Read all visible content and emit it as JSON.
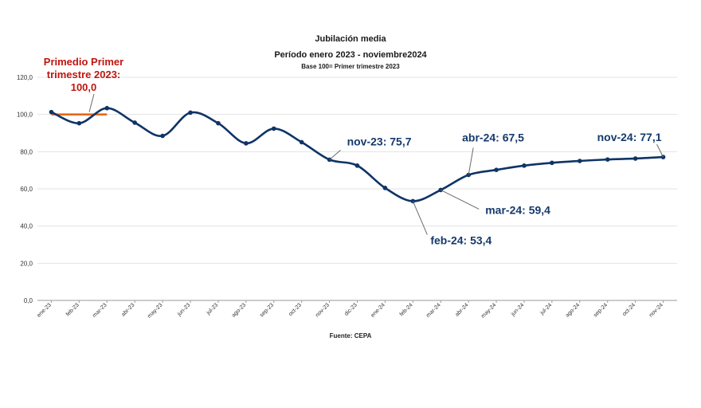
{
  "chart_data": {
    "type": "line",
    "title": "Jubilación media",
    "subtitle": "Período enero 2023 - noviembre2024",
    "note": "Base 100=  Primer trimestre 2023",
    "source": "Fuente: CEPA",
    "categories": [
      "ene-23",
      "feb-23",
      "mar-23",
      "abr-23",
      "may-23",
      "jun-23",
      "jul-23",
      "ago-23",
      "sep-23",
      "oct-23",
      "nov-23",
      "dic-23",
      "ene-24",
      "feb-24",
      "mar-24",
      "abr-24",
      "may-24",
      "jun-24",
      "jul-24",
      "ago-24",
      "sep-24",
      "oct-24",
      "nov-24"
    ],
    "series": [
      {
        "values": [
          101.3,
          95.3,
          103.4,
          95.6,
          88.5,
          101.0,
          95.3,
          84.5,
          92.4,
          85.1,
          75.7,
          72.5,
          60.5,
          53.4,
          59.4,
          67.5,
          70.2,
          72.5,
          74.0,
          75.0,
          75.8,
          76.3,
          77.1
        ]
      }
    ],
    "ylim": [
      0,
      120
    ],
    "yticks": [
      "0,0",
      "20,0",
      "40,0",
      "60,0",
      "80,0",
      "100,0",
      "120,0"
    ],
    "ytick_values": [
      0,
      20,
      40,
      60,
      80,
      100,
      120
    ],
    "grid": true,
    "line_color": "#0f3466",
    "reference": {
      "label_lines": [
        "Primedio Primer",
        "trimestre 2023:",
        "100,0"
      ],
      "value": 100.0,
      "from": "ene-23",
      "to": "mar-23",
      "color": "#e3620f"
    },
    "annotations": [
      {
        "text": "nov-23: 75,7",
        "category": "nov-23"
      },
      {
        "text": "feb-24: 53,4",
        "category": "feb-24"
      },
      {
        "text": "mar-24: 59,4",
        "category": "mar-24"
      },
      {
        "text": "abr-24: 67,5",
        "category": "abr-24"
      },
      {
        "text": "nov-24: 77,1",
        "category": "nov-24"
      }
    ]
  }
}
